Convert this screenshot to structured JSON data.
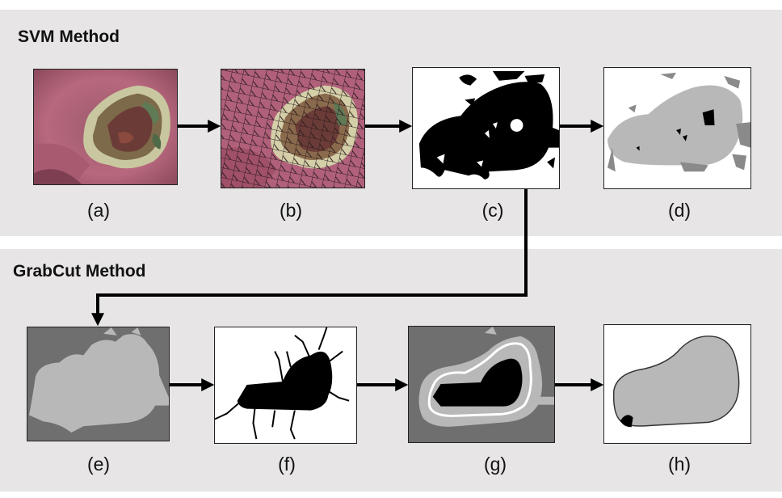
{
  "panels": {
    "svm": {
      "title": "SVM Method"
    },
    "grabcut": {
      "title": "GrabCut Method"
    }
  },
  "labels": {
    "a": "(a)",
    "b": "(b)",
    "c": "(c)",
    "d": "(d)",
    "e": "(e)",
    "f": "(f)",
    "g": "(g)",
    "h": "(h)"
  },
  "colors": {
    "panel_background": "#e7e5e6",
    "mask_dark_gray": "#6f6f6f",
    "mask_light_gray": "#b8b8b8",
    "mask_black": "#000000",
    "wound_skin": "#b0607a",
    "arrow": "#000000"
  }
}
